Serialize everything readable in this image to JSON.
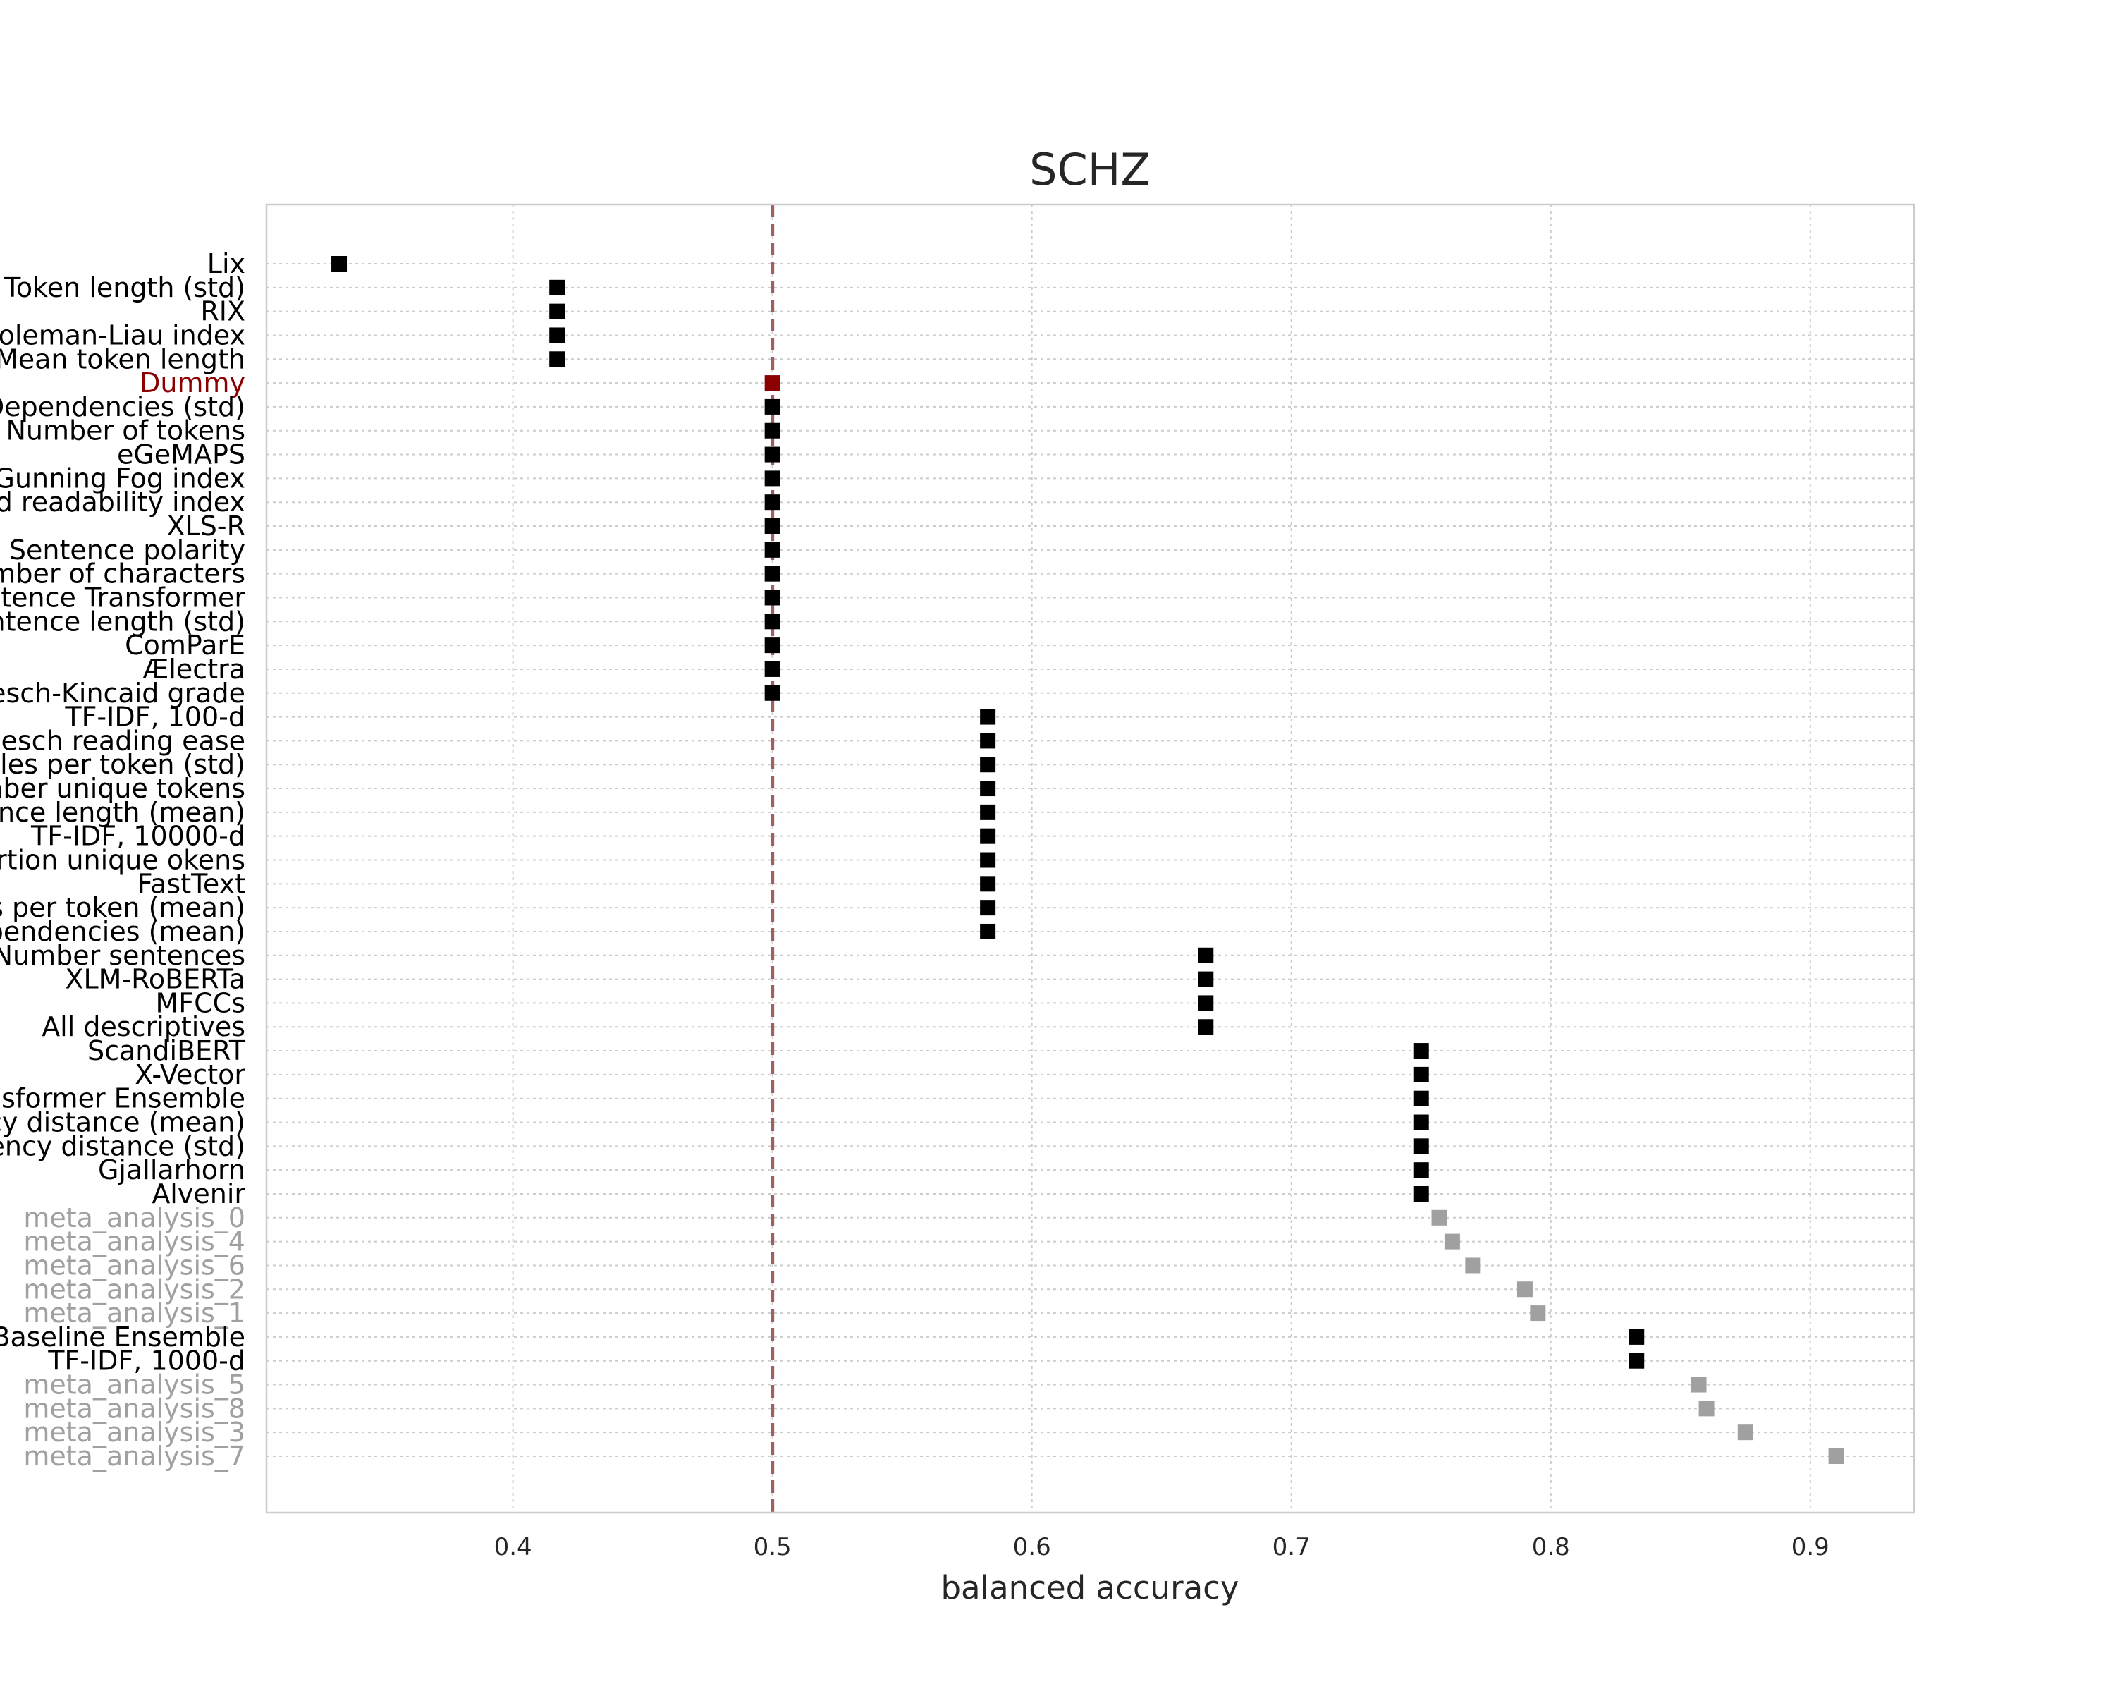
{
  "chart_data": {
    "type": "scatter",
    "title": "SCHZ",
    "xlabel": "balanced accuracy",
    "ylabel": "",
    "xlim": [
      0.305,
      0.94
    ],
    "xticks": [
      0.4,
      0.5,
      0.6,
      0.7,
      0.8,
      0.9
    ],
    "xtick_labels": [
      "0.4",
      "0.5",
      "0.6",
      "0.7",
      "0.8",
      "0.9"
    ],
    "grid": true,
    "reference_line": {
      "x": 0.5,
      "style": "dashed",
      "color": "#a06060"
    },
    "colors": {
      "default": "#000000",
      "meta": "#a0a0a0",
      "dummy": "#8b0000"
    },
    "points": [
      {
        "label": "Lix",
        "value": 0.333,
        "group": "default"
      },
      {
        "label": "Token length (std)",
        "value": 0.417,
        "group": "default"
      },
      {
        "label": "RIX",
        "value": 0.417,
        "group": "default"
      },
      {
        "label": "Coleman-Liau index",
        "value": 0.417,
        "group": "default"
      },
      {
        "label": "Mean token length",
        "value": 0.417,
        "group": "default"
      },
      {
        "label": "Dummy",
        "value": 0.5,
        "group": "dummy"
      },
      {
        "label": "Dependencies (std)",
        "value": 0.5,
        "group": "default"
      },
      {
        "label": "Number of tokens",
        "value": 0.5,
        "group": "default"
      },
      {
        "label": "eGeMAPS",
        "value": 0.5,
        "group": "default"
      },
      {
        "label": "Gunning Fog index",
        "value": 0.5,
        "group": "default"
      },
      {
        "label": "Automated readability index",
        "value": 0.5,
        "group": "default"
      },
      {
        "label": "XLS-R",
        "value": 0.5,
        "group": "default"
      },
      {
        "label": "Sentence polarity",
        "value": 0.5,
        "group": "default"
      },
      {
        "label": "Number of characters",
        "value": 0.5,
        "group": "default"
      },
      {
        "label": "Sentence Transformer",
        "value": 0.5,
        "group": "default"
      },
      {
        "label": "Sentence length (std)",
        "value": 0.5,
        "group": "default"
      },
      {
        "label": "ComParE",
        "value": 0.5,
        "group": "default"
      },
      {
        "label": "Ælectra",
        "value": 0.5,
        "group": "default"
      },
      {
        "label": "Flesch-Kincaid grade",
        "value": 0.5,
        "group": "default"
      },
      {
        "label": "TF-IDF, 100-d",
        "value": 0.583,
        "group": "default"
      },
      {
        "label": "Flesch reading ease",
        "value": 0.583,
        "group": "default"
      },
      {
        "label": "Syllables per token (std)",
        "value": 0.583,
        "group": "default"
      },
      {
        "label": "Number unique tokens",
        "value": 0.583,
        "group": "default"
      },
      {
        "label": "Sentence length (mean)",
        "value": 0.583,
        "group": "default"
      },
      {
        "label": "TF-IDF, 10000-d",
        "value": 0.583,
        "group": "default"
      },
      {
        "label": "Proportion unique okens",
        "value": 0.583,
        "group": "default"
      },
      {
        "label": "FastText",
        "value": 0.583,
        "group": "default"
      },
      {
        "label": "Syllables per token (mean)",
        "value": 0.583,
        "group": "default"
      },
      {
        "label": "Dependencies (mean)",
        "value": 0.583,
        "group": "default"
      },
      {
        "label": "Number sentences",
        "value": 0.667,
        "group": "default"
      },
      {
        "label": "XLM-RoBERTa",
        "value": 0.667,
        "group": "default"
      },
      {
        "label": "MFCCs",
        "value": 0.667,
        "group": "default"
      },
      {
        "label": "All descriptives",
        "value": 0.667,
        "group": "default"
      },
      {
        "label": "ScandiBERT",
        "value": 0.75,
        "group": "default"
      },
      {
        "label": "X-Vector",
        "value": 0.75,
        "group": "default"
      },
      {
        "label": "Transformer Ensemble",
        "value": 0.75,
        "group": "default"
      },
      {
        "label": "Dependency distance (mean)",
        "value": 0.75,
        "group": "default"
      },
      {
        "label": "Dependency distance (std)",
        "value": 0.75,
        "group": "default"
      },
      {
        "label": "Gjallarhorn",
        "value": 0.75,
        "group": "default"
      },
      {
        "label": "Alvenir",
        "value": 0.75,
        "group": "default"
      },
      {
        "label": "meta_analysis_0",
        "value": 0.757,
        "group": "meta"
      },
      {
        "label": "meta_analysis_4",
        "value": 0.762,
        "group": "meta"
      },
      {
        "label": "meta_analysis_6",
        "value": 0.77,
        "group": "meta"
      },
      {
        "label": "meta_analysis_2",
        "value": 0.79,
        "group": "meta"
      },
      {
        "label": "meta_analysis_1",
        "value": 0.795,
        "group": "meta"
      },
      {
        "label": "Baseline Ensemble",
        "value": 0.833,
        "group": "default"
      },
      {
        "label": "TF-IDF, 1000-d",
        "value": 0.833,
        "group": "default"
      },
      {
        "label": "meta_analysis_5",
        "value": 0.857,
        "group": "meta"
      },
      {
        "label": "meta_analysis_8",
        "value": 0.86,
        "group": "meta"
      },
      {
        "label": "meta_analysis_3",
        "value": 0.875,
        "group": "meta"
      },
      {
        "label": "meta_analysis_7",
        "value": 0.91,
        "group": "meta"
      }
    ]
  }
}
